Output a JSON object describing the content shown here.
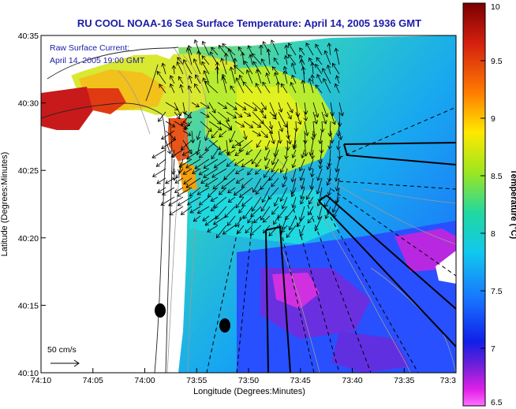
{
  "title": "RU COOL  NOAA-16  Sea Surface Temperature:  April 14, 2005 1936 GMT",
  "overlay": {
    "line1": "Raw Surface Current:",
    "line2": "April 14, 2005 19:00 GMT"
  },
  "scale_label": "50 cm/s",
  "x_axis": {
    "label": "Longitude (Degrees:Minutes)",
    "ticks": [
      "74:10",
      "74:05",
      "74:00",
      "73:55",
      "73:50",
      "73:45",
      "73:40",
      "73:35",
      "73:3"
    ]
  },
  "y_axis": {
    "label": "Latitude (Degrees:Minutes)",
    "ticks": [
      "40:35",
      "40:30",
      "40:25",
      "40:20",
      "40:15",
      "40:10"
    ]
  },
  "colorbar": {
    "label": "Temperature (°C)",
    "ticks": [
      "10",
      "9.5",
      "9",
      "8.5",
      "8",
      "7.5",
      "7",
      "6.5"
    ],
    "range": [
      6.5,
      10
    ]
  },
  "colors": {
    "title": "#1a1aa8",
    "overlay_text": "#1a1aa8",
    "land": "#fffdf7",
    "cold": "#1e3cff",
    "warm": "#c01818"
  }
}
